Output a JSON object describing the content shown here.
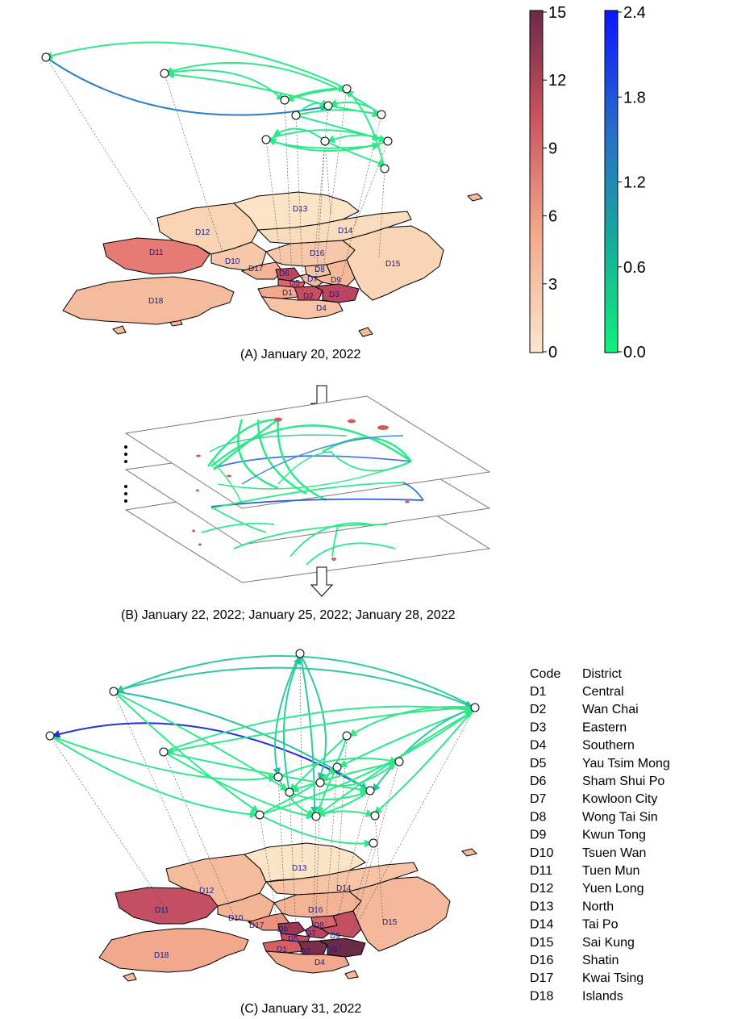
{
  "captions": {
    "panel_a": "(A) January 20, 2022",
    "panel_b": "(B) January 22, 2022; January 25, 2022; January 28, 2022",
    "panel_c": "(C) January 31, 2022"
  },
  "colorbar_cases": {
    "ticks": [
      "15",
      "12",
      "9",
      "6",
      "3",
      "0"
    ],
    "colors": [
      "#6b2a47",
      "#c9505e",
      "#f3a98a",
      "#fbe6cc"
    ]
  },
  "colorbar_flow": {
    "ticks": [
      "2.4",
      "1.8",
      "1.2",
      "0.6",
      "0.0"
    ],
    "colors": [
      "#0a17ff",
      "#2a6cc8",
      "#17a6a0",
      "#14f07a"
    ]
  },
  "district_codes": [
    "D1",
    "D2",
    "D3",
    "D4",
    "D5",
    "D6",
    "D7",
    "D8",
    "D9",
    "D10",
    "D11",
    "D12",
    "D13",
    "D14",
    "D15",
    "D16",
    "D17",
    "D18"
  ],
  "legend": {
    "header_code": "Code",
    "header_district": "District",
    "rows": [
      {
        "code": "D1",
        "name": "Central"
      },
      {
        "code": "D2",
        "name": "Wan Chai"
      },
      {
        "code": "D3",
        "name": "Eastern"
      },
      {
        "code": "D4",
        "name": "Southern"
      },
      {
        "code": "D5",
        "name": "Yau Tsim Mong"
      },
      {
        "code": "D6",
        "name": "Sham Shui Po"
      },
      {
        "code": "D7",
        "name": "Kowloon City"
      },
      {
        "code": "D8",
        "name": "Wong Tai Sin"
      },
      {
        "code": "D9",
        "name": "Kwun Tong"
      },
      {
        "code": "D10",
        "name": "Tsuen Wan"
      },
      {
        "code": "D11",
        "name": "Tuen Mun"
      },
      {
        "code": "D12",
        "name": "Yuen Long"
      },
      {
        "code": "D13",
        "name": "North"
      },
      {
        "code": "D14",
        "name": "Tai Po"
      },
      {
        "code": "D15",
        "name": "Sai Kung"
      },
      {
        "code": "D16",
        "name": "Shatin"
      },
      {
        "code": "D17",
        "name": "Kwai Tsing"
      },
      {
        "code": "D18",
        "name": "Islands"
      }
    ]
  },
  "panel_a_fill": {
    "D1": "#f1a88c",
    "D2": "#c44e62",
    "D3": "#b94561",
    "D4": "#f6c3a4",
    "D5": "#d9666a",
    "D6": "#b94a62",
    "D7": "#f4b99a",
    "D8": "#f6c4a5",
    "D9": "#f4b99a",
    "D10": "#f6c7a8",
    "D11": "#e67a74",
    "D12": "#f8d4b5",
    "D13": "#fbe3c6",
    "D14": "#f9dcbd",
    "D15": "#f8d5b6",
    "D16": "#f6c7a8",
    "D17": "#f3b496",
    "D18": "#f4bc9d"
  },
  "panel_c_fill": {
    "D1": "#d55f67",
    "D2": "#7a2e4c",
    "D3": "#6b2a47",
    "D4": "#f1a88c",
    "D5": "#c44e62",
    "D6": "#9b3656",
    "D7": "#b94561",
    "D8": "#d9666a",
    "D9": "#c44e62",
    "D10": "#f3b496",
    "D11": "#c44e62",
    "D12": "#f4bc9d",
    "D13": "#fbe3c6",
    "D14": "#f6c4a5",
    "D15": "#f4b99a",
    "D16": "#f3b496",
    "D17": "#ec917e",
    "D18": "#f1a88c"
  }
}
